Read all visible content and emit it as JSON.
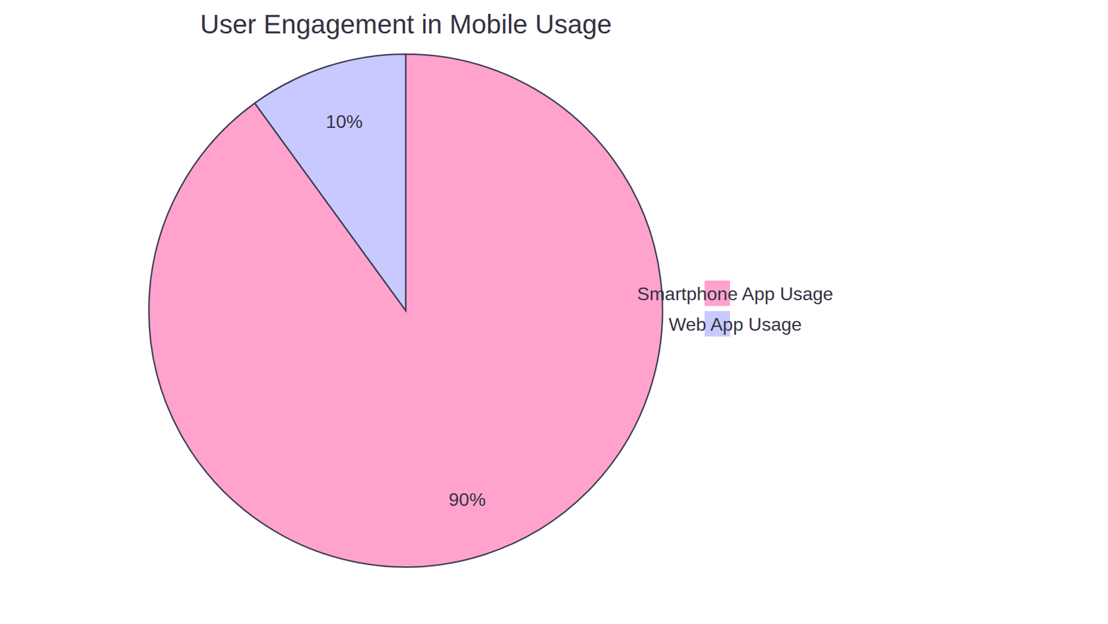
{
  "chart_data": {
    "type": "pie",
    "title": "User Engagement in Mobile Usage",
    "categories": [
      "Smartphone App Usage",
      "Web App Usage"
    ],
    "values": [
      90,
      10
    ],
    "value_labels": [
      "90%",
      "10%"
    ],
    "colors": [
      "#ffa3cc",
      "#c8c9ff"
    ],
    "legend": "right",
    "data_labels": true
  }
}
